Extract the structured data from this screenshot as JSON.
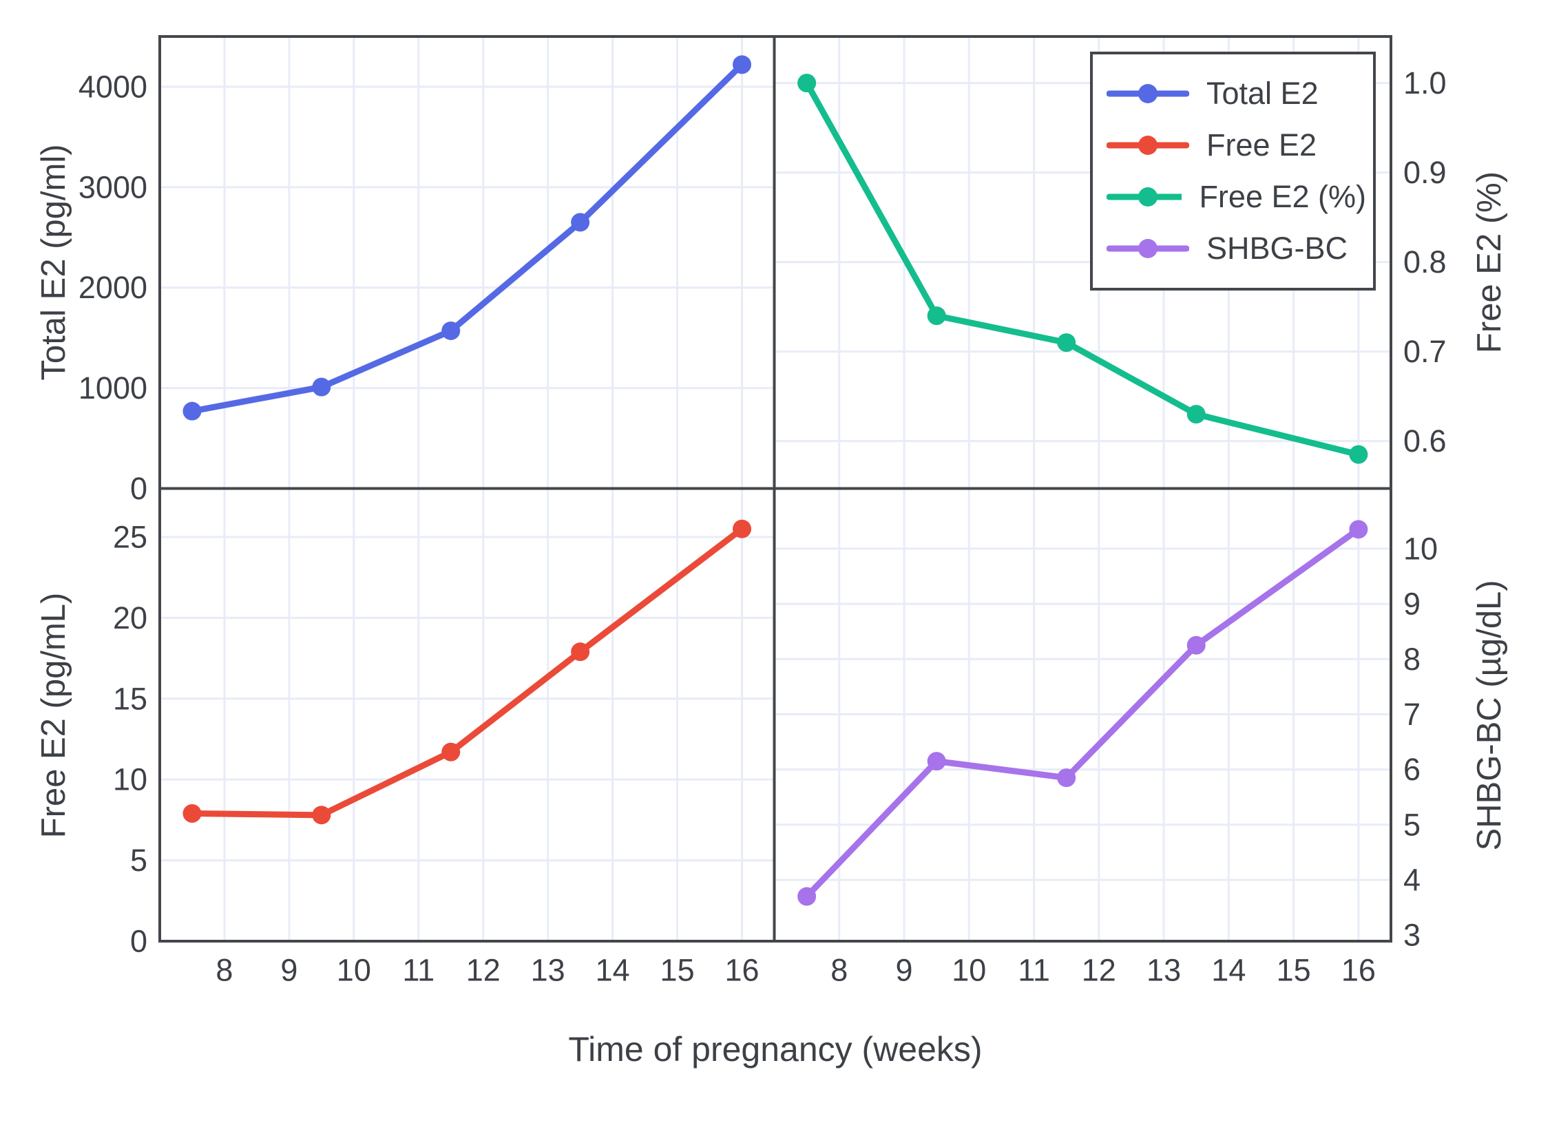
{
  "figure": {
    "background": "#ffffff",
    "axis_color": "#43474b",
    "grid_color": "#e8ecf7",
    "text_color": "#3d4147"
  },
  "legend": {
    "items": [
      {
        "id": "total-e2",
        "label": "Total E2",
        "color": "#5569e5"
      },
      {
        "id": "free-e2",
        "label": "Free E2",
        "color": "#eb4a38"
      },
      {
        "id": "free-e2-pct",
        "label": "Free E2 (%)",
        "color": "#14bd8d"
      },
      {
        "id": "shbg-bc",
        "label": "SHBG-BC",
        "color": "#a673ea"
      }
    ]
  },
  "chart_data": {
    "type": "line",
    "title": "",
    "x_label": "Time of pregnancy (weeks)",
    "x": [
      7.5,
      9.5,
      11.5,
      13.5,
      16
    ],
    "x_ticks": [
      8,
      9,
      10,
      11,
      12,
      13,
      14,
      15,
      16
    ],
    "x_range": [
      7.0,
      16.5
    ],
    "grid": true,
    "legend_position": "inside-top-right-panel",
    "panels": [
      {
        "id": "total-e2",
        "position": "top-left",
        "series": "Total E2",
        "color": "#5569e5",
        "ylabel": "Total E2 (pg/ml)",
        "ylabel_side": "left",
        "y": [
          770,
          1010,
          1570,
          2650,
          4220
        ],
        "y_ticks": [
          0,
          1000,
          2000,
          3000,
          4000
        ],
        "y_tick_decimals": 0,
        "y_range": [
          0,
          4500
        ]
      },
      {
        "id": "free-e2-pct",
        "position": "top-right",
        "series": "Free E2 (%)",
        "color": "#14bd8d",
        "ylabel": "Free E2 (%)",
        "ylabel_side": "right",
        "y": [
          1.0,
          0.74,
          0.71,
          0.63,
          0.585
        ],
        "y_ticks": [
          0.6,
          0.7,
          0.8,
          0.9,
          1.0
        ],
        "y_tick_decimals": 1,
        "y_range": [
          0.547,
          1.052
        ]
      },
      {
        "id": "free-e2",
        "position": "bottom-left",
        "series": "Free E2",
        "color": "#eb4a38",
        "ylabel": "Free E2 (pg/mL)",
        "ylabel_side": "left",
        "y": [
          7.9,
          7.8,
          11.7,
          17.9,
          25.5
        ],
        "y_ticks": [
          0,
          5,
          10,
          15,
          20,
          25
        ],
        "y_tick_decimals": 0,
        "y_range": [
          0,
          28
        ]
      },
      {
        "id": "shbg-bc",
        "position": "bottom-right",
        "series": "SHBG-BC",
        "color": "#a673ea",
        "ylabel": "SHBG-BC (µg/dL)",
        "ylabel_side": "right",
        "y": [
          3.7,
          6.15,
          5.85,
          8.25,
          10.35
        ],
        "y_ticks": [
          3,
          4,
          5,
          6,
          7,
          8,
          9,
          10
        ],
        "y_tick_decimals": 0,
        "y_range": [
          2.89,
          11.09
        ]
      }
    ]
  }
}
